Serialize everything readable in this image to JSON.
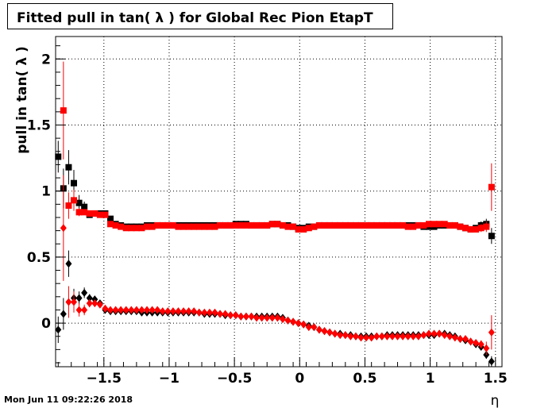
{
  "title": "Fitted pull in tan( λ ) for Global Rec Pion EtapT",
  "timestamp": "Mon Jun 11 09:22:26 2018",
  "chart_data": {
    "type": "scatter",
    "title": "Fitted pull in tan( λ ) for Global Rec Pion EtapT",
    "xlabel": "η",
    "ylabel": "pull in tan( λ )",
    "xlim": [
      -1.87,
      1.55
    ],
    "ylim": [
      -0.33,
      2.17
    ],
    "grid": true,
    "xticks": [
      -1.5,
      -1,
      -0.5,
      0,
      0.5,
      1,
      1.5
    ],
    "xtick_labels": [
      "−1.5",
      "−1",
      "−0.5",
      "0",
      "0.5",
      "1",
      "1.5"
    ],
    "yticks": [
      0,
      0.5,
      1,
      1.5,
      2
    ],
    "ytick_labels": [
      "0",
      "0.5",
      "1",
      "1.5",
      "2"
    ],
    "colors": {
      "black_series": "#000000",
      "red_series": "#ff0000"
    },
    "series": [
      {
        "color": "#000000",
        "marker": "square",
        "x": [
          -1.85,
          -1.81,
          -1.77,
          -1.73,
          -1.69,
          -1.65,
          -1.61,
          -1.57,
          -1.53,
          -1.49,
          -1.45,
          -1.41,
          -1.37,
          -1.33,
          -1.29,
          -1.25,
          -1.21,
          -1.17,
          -1.13,
          -1.09,
          -1.05,
          -1.01,
          -0.97,
          -0.93,
          -0.89,
          -0.85,
          -0.81,
          -0.77,
          -0.73,
          -0.69,
          -0.65,
          -0.61,
          -0.57,
          -0.53,
          -0.49,
          -0.45,
          -0.41,
          -0.37,
          -0.33,
          -0.29,
          -0.25,
          -0.21,
          -0.17,
          -0.13,
          -0.09,
          -0.05,
          -0.01,
          0.03,
          0.07,
          0.11,
          0.15,
          0.19,
          0.23,
          0.27,
          0.31,
          0.35,
          0.39,
          0.43,
          0.47,
          0.51,
          0.55,
          0.59,
          0.63,
          0.67,
          0.71,
          0.75,
          0.79,
          0.83,
          0.87,
          0.91,
          0.95,
          0.99,
          1.03,
          1.07,
          1.11,
          1.15,
          1.19,
          1.23,
          1.27,
          1.31,
          1.35,
          1.39,
          1.43,
          1.47
        ],
        "y": [
          1.26,
          1.02,
          1.18,
          1.06,
          0.91,
          0.88,
          0.82,
          0.83,
          0.83,
          0.83,
          0.79,
          0.75,
          0.74,
          0.73,
          0.73,
          0.73,
          0.73,
          0.74,
          0.74,
          0.74,
          0.74,
          0.74,
          0.74,
          0.74,
          0.74,
          0.74,
          0.74,
          0.74,
          0.74,
          0.74,
          0.74,
          0.74,
          0.74,
          0.74,
          0.75,
          0.75,
          0.75,
          0.74,
          0.74,
          0.74,
          0.74,
          0.75,
          0.75,
          0.74,
          0.74,
          0.73,
          0.72,
          0.72,
          0.73,
          0.73,
          0.74,
          0.74,
          0.74,
          0.74,
          0.74,
          0.74,
          0.74,
          0.74,
          0.74,
          0.74,
          0.74,
          0.74,
          0.74,
          0.74,
          0.74,
          0.74,
          0.74,
          0.74,
          0.74,
          0.74,
          0.73,
          0.73,
          0.73,
          0.74,
          0.74,
          0.74,
          0.74,
          0.73,
          0.72,
          0.71,
          0.72,
          0.74,
          0.75,
          0.66
        ],
        "yerr": [
          0.12,
          0.15,
          0.13,
          0.1,
          0.06,
          0.04,
          0.02,
          0.02,
          0.02,
          0.02,
          0.02,
          0.01,
          0.01,
          0.01,
          0.01,
          0.01,
          0.01,
          0.01,
          0.01,
          0.01,
          0.01,
          0.01,
          0.01,
          0.01,
          0.01,
          0.01,
          0.01,
          0.01,
          0.01,
          0.01,
          0.01,
          0.01,
          0.01,
          0.01,
          0.01,
          0.01,
          0.01,
          0.01,
          0.01,
          0.01,
          0.01,
          0.01,
          0.01,
          0.01,
          0.01,
          0.01,
          0.01,
          0.01,
          0.01,
          0.01,
          0.01,
          0.01,
          0.01,
          0.01,
          0.01,
          0.01,
          0.01,
          0.01,
          0.01,
          0.01,
          0.01,
          0.01,
          0.01,
          0.01,
          0.01,
          0.01,
          0.01,
          0.01,
          0.01,
          0.01,
          0.01,
          0.01,
          0.01,
          0.01,
          0.01,
          0.01,
          0.01,
          0.01,
          0.01,
          0.02,
          0.02,
          0.03,
          0.04,
          0.06
        ]
      },
      {
        "color": "#ff0000",
        "marker": "square",
        "x": [
          -1.85,
          -1.81,
          -1.77,
          -1.73,
          -1.69,
          -1.65,
          -1.61,
          -1.57,
          -1.53,
          -1.49,
          -1.45,
          -1.41,
          -1.37,
          -1.33,
          -1.29,
          -1.25,
          -1.21,
          -1.17,
          -1.13,
          -1.09,
          -1.05,
          -1.01,
          -0.97,
          -0.93,
          -0.89,
          -0.85,
          -0.81,
          -0.77,
          -0.73,
          -0.69,
          -0.65,
          -0.61,
          -0.57,
          -0.53,
          -0.49,
          -0.45,
          -0.41,
          -0.37,
          -0.33,
          -0.29,
          -0.25,
          -0.21,
          -0.17,
          -0.13,
          -0.09,
          -0.05,
          -0.01,
          0.03,
          0.07,
          0.11,
          0.15,
          0.19,
          0.23,
          0.27,
          0.31,
          0.35,
          0.39,
          0.43,
          0.47,
          0.51,
          0.55,
          0.59,
          0.63,
          0.67,
          0.71,
          0.75,
          0.79,
          0.83,
          0.87,
          0.91,
          0.95,
          0.99,
          1.03,
          1.07,
          1.11,
          1.15,
          1.19,
          1.23,
          1.27,
          1.31,
          1.35,
          1.39,
          1.43,
          1.47
        ],
        "y": [
          null,
          1.61,
          0.89,
          0.93,
          0.84,
          0.84,
          0.83,
          0.83,
          0.82,
          0.82,
          0.75,
          0.74,
          0.73,
          0.72,
          0.72,
          0.72,
          0.72,
          0.73,
          0.73,
          0.74,
          0.74,
          0.74,
          0.74,
          0.73,
          0.73,
          0.73,
          0.73,
          0.73,
          0.73,
          0.73,
          0.73,
          0.74,
          0.74,
          0.74,
          0.74,
          0.74,
          0.74,
          0.74,
          0.74,
          0.74,
          0.74,
          0.75,
          0.75,
          0.74,
          0.73,
          0.73,
          0.71,
          0.71,
          0.72,
          0.73,
          0.74,
          0.74,
          0.74,
          0.74,
          0.74,
          0.74,
          0.74,
          0.74,
          0.74,
          0.74,
          0.74,
          0.74,
          0.74,
          0.74,
          0.74,
          0.74,
          0.74,
          0.73,
          0.73,
          0.74,
          0.74,
          0.75,
          0.75,
          0.75,
          0.75,
          0.74,
          0.74,
          0.73,
          0.72,
          0.71,
          0.71,
          0.72,
          0.73,
          1.03
        ],
        "yerr": [
          0,
          0.37,
          0.1,
          0.08,
          0.03,
          0.02,
          0.02,
          0.02,
          0.02,
          0.02,
          0.01,
          0.01,
          0.01,
          0.01,
          0.01,
          0.01,
          0.01,
          0.01,
          0.01,
          0.01,
          0.01,
          0.01,
          0.01,
          0.01,
          0.01,
          0.01,
          0.01,
          0.01,
          0.01,
          0.01,
          0.01,
          0.01,
          0.01,
          0.01,
          0.01,
          0.01,
          0.01,
          0.01,
          0.01,
          0.01,
          0.01,
          0.01,
          0.01,
          0.01,
          0.01,
          0.01,
          0.01,
          0.01,
          0.01,
          0.01,
          0.01,
          0.01,
          0.01,
          0.01,
          0.01,
          0.01,
          0.01,
          0.01,
          0.01,
          0.01,
          0.01,
          0.01,
          0.01,
          0.01,
          0.01,
          0.01,
          0.01,
          0.01,
          0.01,
          0.01,
          0.01,
          0.01,
          0.01,
          0.01,
          0.01,
          0.01,
          0.01,
          0.01,
          0.01,
          0.02,
          0.02,
          0.03,
          0.04,
          0.18
        ]
      },
      {
        "color": "#000000",
        "marker": "diamond",
        "x": [
          -1.85,
          -1.81,
          -1.77,
          -1.73,
          -1.69,
          -1.65,
          -1.61,
          -1.57,
          -1.53,
          -1.49,
          -1.45,
          -1.41,
          -1.37,
          -1.33,
          -1.29,
          -1.25,
          -1.21,
          -1.17,
          -1.13,
          -1.09,
          -1.05,
          -1.01,
          -0.97,
          -0.93,
          -0.89,
          -0.85,
          -0.81,
          -0.77,
          -0.73,
          -0.69,
          -0.65,
          -0.61,
          -0.57,
          -0.53,
          -0.49,
          -0.45,
          -0.41,
          -0.37,
          -0.33,
          -0.29,
          -0.25,
          -0.21,
          -0.17,
          -0.13,
          -0.09,
          -0.05,
          -0.01,
          0.03,
          0.07,
          0.11,
          0.15,
          0.19,
          0.23,
          0.27,
          0.31,
          0.35,
          0.39,
          0.43,
          0.47,
          0.51,
          0.55,
          0.59,
          0.63,
          0.67,
          0.71,
          0.75,
          0.79,
          0.83,
          0.87,
          0.91,
          0.95,
          0.99,
          1.03,
          1.07,
          1.11,
          1.15,
          1.19,
          1.23,
          1.27,
          1.31,
          1.35,
          1.39,
          1.43,
          1.47
        ],
        "y": [
          -0.05,
          0.07,
          0.45,
          0.19,
          0.19,
          0.23,
          0.19,
          0.18,
          0.15,
          0.1,
          0.09,
          0.09,
          0.09,
          0.09,
          0.09,
          0.09,
          0.08,
          0.08,
          0.08,
          0.08,
          0.08,
          0.08,
          0.08,
          0.08,
          0.08,
          0.08,
          0.08,
          0.08,
          0.07,
          0.07,
          0.07,
          0.07,
          0.06,
          0.06,
          0.06,
          0.05,
          0.05,
          0.05,
          0.05,
          0.05,
          0.05,
          0.05,
          0.05,
          0.04,
          0.02,
          0.01,
          0.0,
          -0.01,
          -0.02,
          -0.03,
          -0.05,
          -0.06,
          -0.07,
          -0.08,
          -0.08,
          -0.09,
          -0.09,
          -0.1,
          -0.1,
          -0.1,
          -0.1,
          -0.1,
          -0.1,
          -0.09,
          -0.09,
          -0.09,
          -0.09,
          -0.09,
          -0.09,
          -0.09,
          -0.09,
          -0.09,
          -0.09,
          -0.08,
          -0.08,
          -0.09,
          -0.1,
          -0.12,
          -0.13,
          -0.14,
          -0.16,
          -0.18,
          -0.24,
          -0.29
        ],
        "yerr": [
          0.1,
          0.12,
          0.1,
          0.07,
          0.05,
          0.04,
          0.03,
          0.02,
          0.02,
          0.01,
          0.01,
          0.01,
          0.01,
          0.01,
          0.01,
          0.01,
          0.01,
          0.01,
          0.01,
          0.01,
          0.01,
          0.01,
          0.01,
          0.01,
          0.01,
          0.01,
          0.01,
          0.01,
          0.01,
          0.01,
          0.01,
          0.01,
          0.01,
          0.01,
          0.01,
          0.01,
          0.01,
          0.01,
          0.01,
          0.01,
          0.01,
          0.01,
          0.01,
          0.01,
          0.01,
          0.01,
          0.01,
          0.01,
          0.01,
          0.01,
          0.01,
          0.01,
          0.01,
          0.01,
          0.01,
          0.01,
          0.01,
          0.01,
          0.01,
          0.01,
          0.01,
          0.01,
          0.01,
          0.01,
          0.01,
          0.01,
          0.01,
          0.01,
          0.01,
          0.01,
          0.01,
          0.01,
          0.01,
          0.01,
          0.01,
          0.01,
          0.01,
          0.01,
          0.01,
          0.02,
          0.02,
          0.02,
          0.03,
          0.04
        ]
      },
      {
        "color": "#ff0000",
        "marker": "diamond",
        "x": [
          -1.85,
          -1.81,
          -1.77,
          -1.73,
          -1.69,
          -1.65,
          -1.61,
          -1.57,
          -1.53,
          -1.49,
          -1.45,
          -1.41,
          -1.37,
          -1.33,
          -1.29,
          -1.25,
          -1.21,
          -1.17,
          -1.13,
          -1.09,
          -1.05,
          -1.01,
          -0.97,
          -0.93,
          -0.89,
          -0.85,
          -0.81,
          -0.77,
          -0.73,
          -0.69,
          -0.65,
          -0.61,
          -0.57,
          -0.53,
          -0.49,
          -0.45,
          -0.41,
          -0.37,
          -0.33,
          -0.29,
          -0.25,
          -0.21,
          -0.17,
          -0.13,
          -0.09,
          -0.05,
          -0.01,
          0.03,
          0.07,
          0.11,
          0.15,
          0.19,
          0.23,
          0.27,
          0.31,
          0.35,
          0.39,
          0.43,
          0.47,
          0.51,
          0.55,
          0.59,
          0.63,
          0.67,
          0.71,
          0.75,
          0.79,
          0.83,
          0.87,
          0.91,
          0.95,
          0.99,
          1.03,
          1.07,
          1.11,
          1.15,
          1.19,
          1.23,
          1.27,
          1.31,
          1.35,
          1.39,
          1.43,
          1.47
        ],
        "y": [
          null,
          0.72,
          0.16,
          0.16,
          0.1,
          0.1,
          0.15,
          0.15,
          0.14,
          0.11,
          0.1,
          0.1,
          0.1,
          0.1,
          0.1,
          0.1,
          0.1,
          0.1,
          0.1,
          0.1,
          0.09,
          0.09,
          0.09,
          0.09,
          0.09,
          0.09,
          0.09,
          0.08,
          0.08,
          0.08,
          0.08,
          0.07,
          0.07,
          0.06,
          0.06,
          0.05,
          0.05,
          0.05,
          0.04,
          0.04,
          0.04,
          0.04,
          0.04,
          0.03,
          0.02,
          0.01,
          0.0,
          -0.01,
          -0.03,
          -0.03,
          -0.05,
          -0.06,
          -0.07,
          -0.08,
          -0.09,
          -0.09,
          -0.1,
          -0.1,
          -0.11,
          -0.11,
          -0.11,
          -0.1,
          -0.1,
          -0.1,
          -0.1,
          -0.1,
          -0.1,
          -0.1,
          -0.1,
          -0.1,
          -0.09,
          -0.08,
          -0.08,
          -0.08,
          -0.09,
          -0.1,
          -0.11,
          -0.12,
          -0.12,
          -0.14,
          -0.15,
          -0.16,
          -0.19,
          -0.07
        ],
        "yerr": [
          0,
          0.4,
          0.12,
          0.08,
          0.05,
          0.04,
          0.03,
          0.02,
          0.02,
          0.01,
          0.01,
          0.01,
          0.01,
          0.01,
          0.01,
          0.01,
          0.01,
          0.01,
          0.01,
          0.01,
          0.01,
          0.01,
          0.01,
          0.01,
          0.01,
          0.01,
          0.01,
          0.01,
          0.01,
          0.01,
          0.01,
          0.01,
          0.01,
          0.01,
          0.01,
          0.01,
          0.01,
          0.01,
          0.01,
          0.01,
          0.01,
          0.01,
          0.01,
          0.01,
          0.01,
          0.01,
          0.01,
          0.01,
          0.01,
          0.01,
          0.01,
          0.01,
          0.01,
          0.01,
          0.01,
          0.01,
          0.01,
          0.01,
          0.01,
          0.01,
          0.01,
          0.01,
          0.01,
          0.01,
          0.01,
          0.01,
          0.01,
          0.01,
          0.01,
          0.01,
          0.01,
          0.01,
          0.01,
          0.01,
          0.01,
          0.01,
          0.01,
          0.01,
          0.01,
          0.02,
          0.02,
          0.03,
          0.05,
          0.13
        ]
      }
    ]
  }
}
